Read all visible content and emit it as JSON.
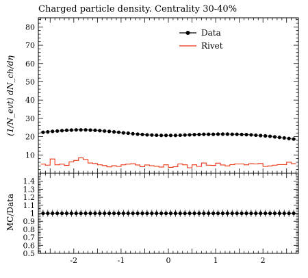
{
  "chart_data": {
    "type": "line",
    "title": "Charged particle density. Centrality 30-40%",
    "ylabel": "(1/N_evt) dN_ch/dη",
    "ratio_ylabel": "MC/Data",
    "xlim": [
      -2.75,
      2.75
    ],
    "ylim": [
      0,
      85
    ],
    "ratio_ylim": [
      0.5,
      1.5
    ],
    "x_ticks": [
      -2,
      -1,
      0,
      1,
      2
    ],
    "x_tick_labels": [
      "-2",
      "-1",
      "0",
      "1",
      "2"
    ],
    "y_ticks": [
      10,
      20,
      30,
      40,
      50,
      60,
      70,
      80
    ],
    "y_tick_labels": [
      "10",
      "20",
      "30",
      "40",
      "50",
      "60",
      "70",
      "80"
    ],
    "ratio_ticks": [
      0.5,
      0.6,
      0.7,
      0.8,
      0.9,
      1.0,
      1.1,
      1.2,
      1.3,
      1.4
    ],
    "ratio_tick_labels": [
      "0.5",
      "0.6",
      "0.7",
      "0.8",
      "0.9",
      "1",
      "1.1",
      "1.2",
      "1.3",
      "1.4"
    ],
    "legend_position": "top-right",
    "series": [
      {
        "name": "Data",
        "color": "#000000",
        "style": "markers",
        "x": [
          -2.65,
          -2.55,
          -2.45,
          -2.35,
          -2.25,
          -2.15,
          -2.05,
          -1.95,
          -1.85,
          -1.75,
          -1.65,
          -1.55,
          -1.45,
          -1.35,
          -1.25,
          -1.15,
          -1.05,
          -0.95,
          -0.85,
          -0.75,
          -0.65,
          -0.55,
          -0.45,
          -0.35,
          -0.25,
          -0.15,
          -0.05,
          0.05,
          0.15,
          0.25,
          0.35,
          0.45,
          0.55,
          0.65,
          0.75,
          0.85,
          0.95,
          1.05,
          1.15,
          1.25,
          1.35,
          1.45,
          1.55,
          1.65,
          1.75,
          1.85,
          1.95,
          2.05,
          2.15,
          2.25,
          2.35,
          2.45,
          2.55,
          2.65
        ],
        "values": [
          22.4,
          22.6,
          22.9,
          23.1,
          23.3,
          23.5,
          23.6,
          23.7,
          23.7,
          23.7,
          23.6,
          23.5,
          23.3,
          23.1,
          22.9,
          22.6,
          22.4,
          22.1,
          21.9,
          21.6,
          21.4,
          21.2,
          21.0,
          20.9,
          20.8,
          20.7,
          20.7,
          20.7,
          20.7,
          20.8,
          20.9,
          21.0,
          21.1,
          21.2,
          21.3,
          21.3,
          21.3,
          21.4,
          21.4,
          21.4,
          21.3,
          21.3,
          21.2,
          21.1,
          21.0,
          20.8,
          20.6,
          20.4,
          20.2,
          19.9,
          19.6,
          19.3,
          19.0,
          18.7
        ],
        "ratio": [
          1,
          1,
          1,
          1,
          1,
          1,
          1,
          1,
          1,
          1,
          1,
          1,
          1,
          1,
          1,
          1,
          1,
          1,
          1,
          1,
          1,
          1,
          1,
          1,
          1,
          1,
          1,
          1,
          1,
          1,
          1,
          1,
          1,
          1,
          1,
          1,
          1,
          1,
          1,
          1,
          1,
          1,
          1,
          1,
          1,
          1,
          1,
          1,
          1,
          1,
          1,
          1,
          1,
          1
        ]
      },
      {
        "name": "Rivet",
        "color": "#ee3311",
        "style": "histogram",
        "x": [
          -2.65,
          -2.55,
          -2.45,
          -2.35,
          -2.25,
          -2.15,
          -2.05,
          -1.95,
          -1.85,
          -1.75,
          -1.65,
          -1.55,
          -1.45,
          -1.35,
          -1.25,
          -1.15,
          -1.05,
          -0.95,
          -0.85,
          -0.75,
          -0.65,
          -0.55,
          -0.45,
          -0.35,
          -0.25,
          -0.15,
          -0.05,
          0.05,
          0.15,
          0.25,
          0.35,
          0.45,
          0.55,
          0.65,
          0.75,
          0.85,
          0.95,
          1.05,
          1.15,
          1.25,
          1.35,
          1.45,
          1.55,
          1.65,
          1.75,
          1.85,
          1.95,
          2.05,
          2.15,
          2.25,
          2.35,
          2.45,
          2.55,
          2.65
        ],
        "values": [
          5.0,
          4.4,
          7.8,
          4.6,
          5.0,
          4.3,
          6.2,
          7.0,
          8.4,
          7.5,
          5.6,
          5.3,
          4.6,
          4.2,
          3.5,
          4.1,
          3.7,
          4.6,
          5.0,
          5.2,
          4.5,
          3.6,
          4.5,
          4.1,
          3.8,
          3.4,
          4.6,
          3.2,
          3.6,
          5.1,
          4.6,
          3.0,
          4.6,
          3.7,
          5.6,
          4.4,
          4.3,
          5.5,
          4.5,
          4.0,
          4.7,
          5.1,
          5.1,
          4.6,
          5.2,
          5.1,
          5.3,
          3.7,
          4.0,
          4.4,
          4.7,
          4.7,
          6.0,
          5.2
        ]
      }
    ]
  }
}
